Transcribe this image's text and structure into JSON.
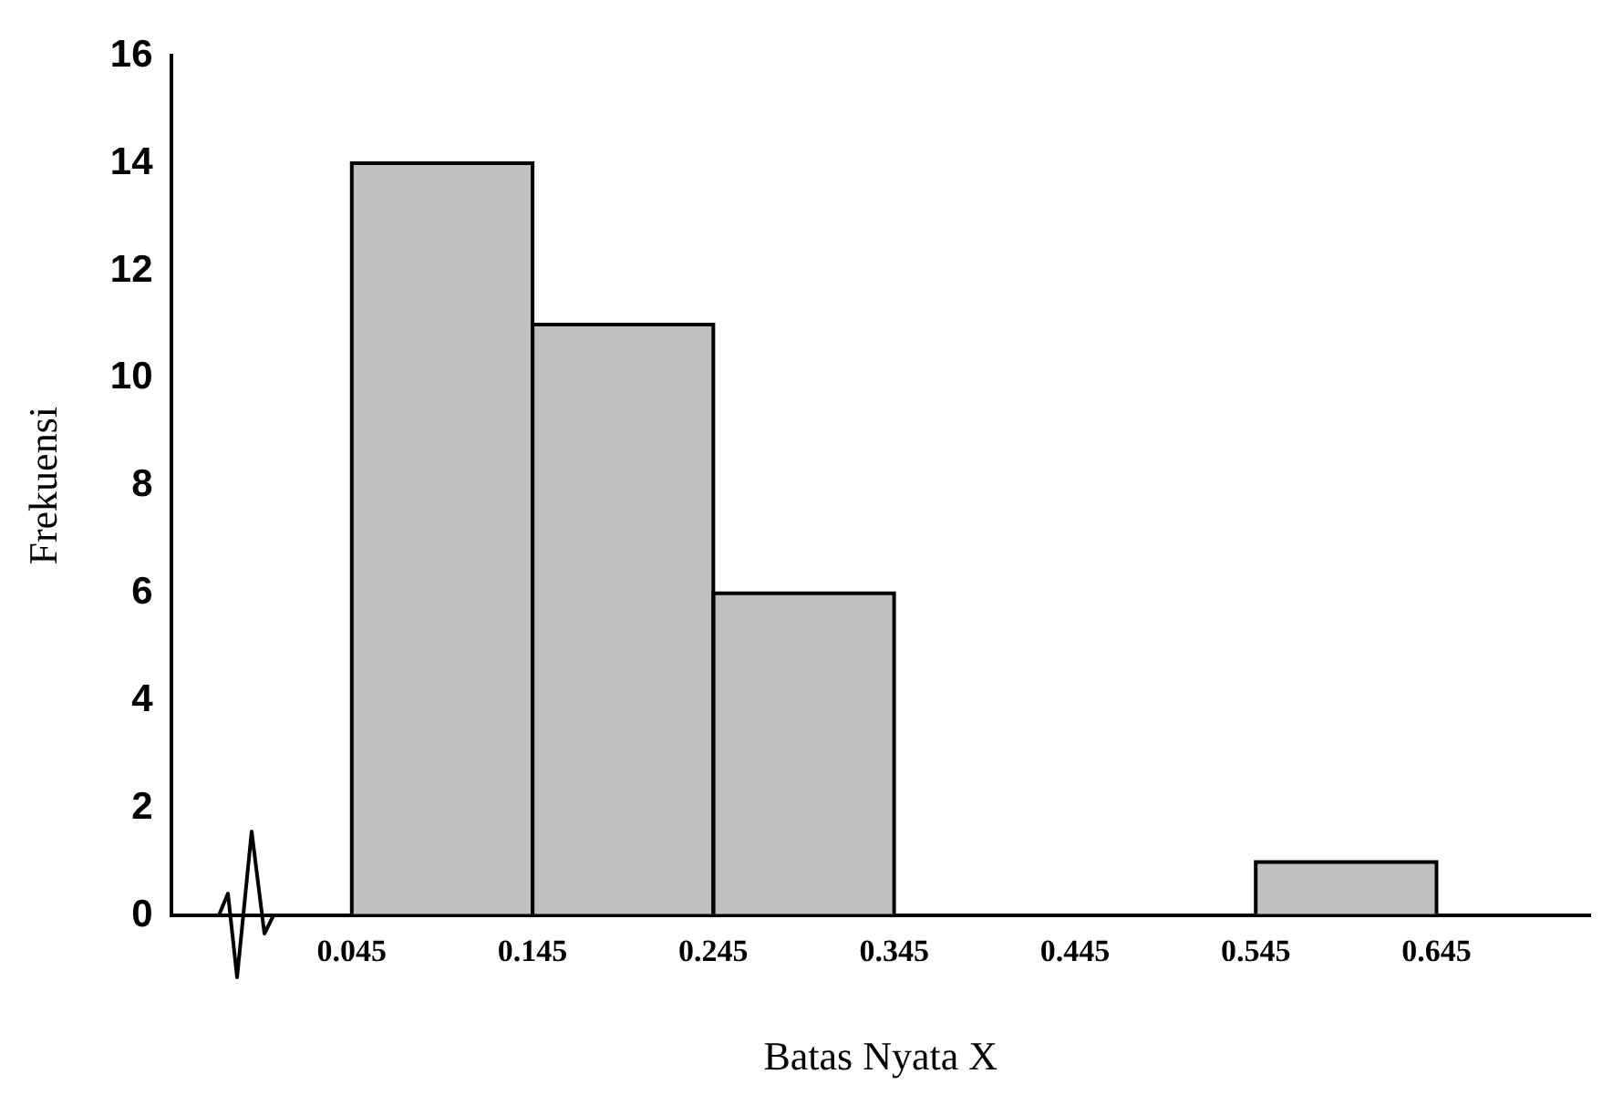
{
  "chart_data": {
    "type": "histogram",
    "xlabel": "Batas Nyata X",
    "ylabel": "Frekuensi",
    "bins": [
      0.045,
      0.145,
      0.245,
      0.345,
      0.445,
      0.545,
      0.645
    ],
    "values": [
      14,
      11,
      6,
      0,
      0,
      1
    ],
    "color": "#c0c0c0",
    "xlim": [
      -0.055,
      0.73
    ],
    "xticks": [
      0.045,
      0.145,
      0.245,
      0.345,
      0.445,
      0.545,
      0.645
    ],
    "ylim": [
      0,
      16
    ],
    "yticks": [
      0,
      2,
      4,
      6,
      8,
      10,
      12,
      14,
      16
    ],
    "grid": false,
    "legend": false
  }
}
